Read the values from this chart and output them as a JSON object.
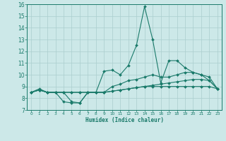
{
  "title": "",
  "xlabel": "Humidex (Indice chaleur)",
  "ylabel": "",
  "x": [
    0,
    1,
    2,
    3,
    4,
    5,
    6,
    7,
    8,
    9,
    10,
    11,
    12,
    13,
    14,
    15,
    16,
    17,
    18,
    19,
    20,
    21,
    22,
    23
  ],
  "line1": [
    8.5,
    8.7,
    8.5,
    8.5,
    8.5,
    7.7,
    7.6,
    8.5,
    8.5,
    10.3,
    10.4,
    10.0,
    10.8,
    12.5,
    15.8,
    13.0,
    9.3,
    11.2,
    11.2,
    10.6,
    10.2,
    10.0,
    9.5,
    8.8
  ],
  "line2": [
    8.5,
    8.8,
    8.5,
    8.5,
    7.7,
    7.6,
    7.6,
    8.5,
    8.5,
    8.5,
    9.0,
    9.2,
    9.5,
    9.6,
    9.8,
    10.0,
    9.8,
    9.8,
    10.0,
    10.2,
    10.2,
    10.0,
    9.8,
    8.8
  ],
  "line3": [
    8.5,
    8.7,
    8.5,
    8.5,
    8.5,
    8.5,
    8.5,
    8.5,
    8.5,
    8.5,
    8.6,
    8.7,
    8.8,
    8.9,
    9.0,
    9.0,
    9.0,
    9.0,
    9.0,
    9.0,
    9.0,
    9.0,
    9.0,
    8.8
  ],
  "line4": [
    8.5,
    8.7,
    8.5,
    8.5,
    8.5,
    8.5,
    8.5,
    8.5,
    8.5,
    8.5,
    8.6,
    8.7,
    8.8,
    8.9,
    9.0,
    9.1,
    9.2,
    9.3,
    9.4,
    9.5,
    9.6,
    9.6,
    9.5,
    8.8
  ],
  "line_color": "#1a7a6a",
  "bg_color": "#cce8e8",
  "grid_color": "#aacece",
  "ylim": [
    7,
    16
  ],
  "xlim": [
    -0.5,
    23.5
  ],
  "yticks": [
    7,
    8,
    9,
    10,
    11,
    12,
    13,
    14,
    15,
    16
  ],
  "xticks": [
    0,
    1,
    2,
    3,
    4,
    5,
    6,
    7,
    8,
    9,
    10,
    11,
    12,
    13,
    14,
    15,
    16,
    17,
    18,
    19,
    20,
    21,
    22,
    23
  ]
}
